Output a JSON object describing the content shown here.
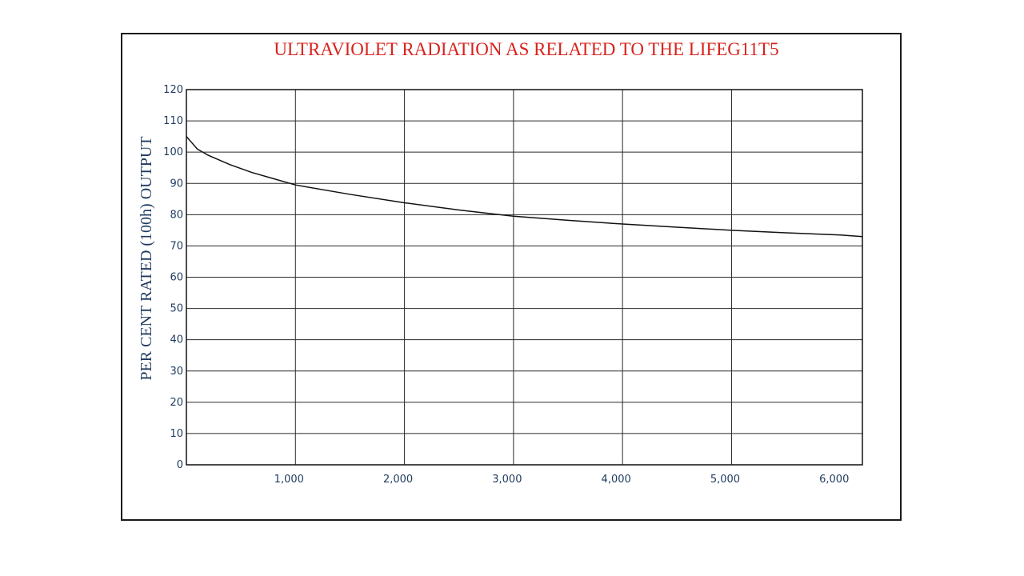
{
  "chart_data": {
    "type": "line",
    "title": "ULTRAVIOLET RADIATION AS RELATED TO THE LIFEG11T5",
    "xlabel": "",
    "ylabel": "PER CENT RATED (100h) OUTPUT",
    "xlim": [
      0,
      6200
    ],
    "ylim": [
      0,
      120
    ],
    "x_ticks": [
      1000,
      2000,
      3000,
      4000,
      5000,
      6000
    ],
    "x_tick_labels": [
      "1,000",
      "2,000",
      "3,000",
      "4,000",
      "5,000",
      "6,000"
    ],
    "y_ticks": [
      0,
      10,
      20,
      30,
      40,
      50,
      60,
      70,
      80,
      90,
      100,
      110,
      120
    ],
    "y_tick_labels": [
      "0",
      "10",
      "20",
      "30",
      "40",
      "50",
      "60",
      "70",
      "80",
      "90",
      "100",
      "110",
      "120"
    ],
    "grid": true,
    "x_grid_values": [
      1000,
      2000,
      3000,
      4000,
      5000
    ],
    "series": [
      {
        "x": [
          0,
          50,
          100,
          200,
          400,
          600,
          800,
          1000,
          1500,
          2000,
          2500,
          3000,
          3500,
          4000,
          4500,
          5000,
          5500,
          6000,
          6200
        ],
        "y": [
          105,
          103,
          101,
          99,
          96,
          93.5,
          91.5,
          89.5,
          86.5,
          83.8,
          81.5,
          79.5,
          78.2,
          77,
          76,
          75,
          74.2,
          73.5,
          73
        ]
      }
    ],
    "colors": {
      "title": "#d7231e",
      "labels": "#1f3a5f",
      "line": "#111111",
      "grid": "#2a2a2a"
    }
  }
}
